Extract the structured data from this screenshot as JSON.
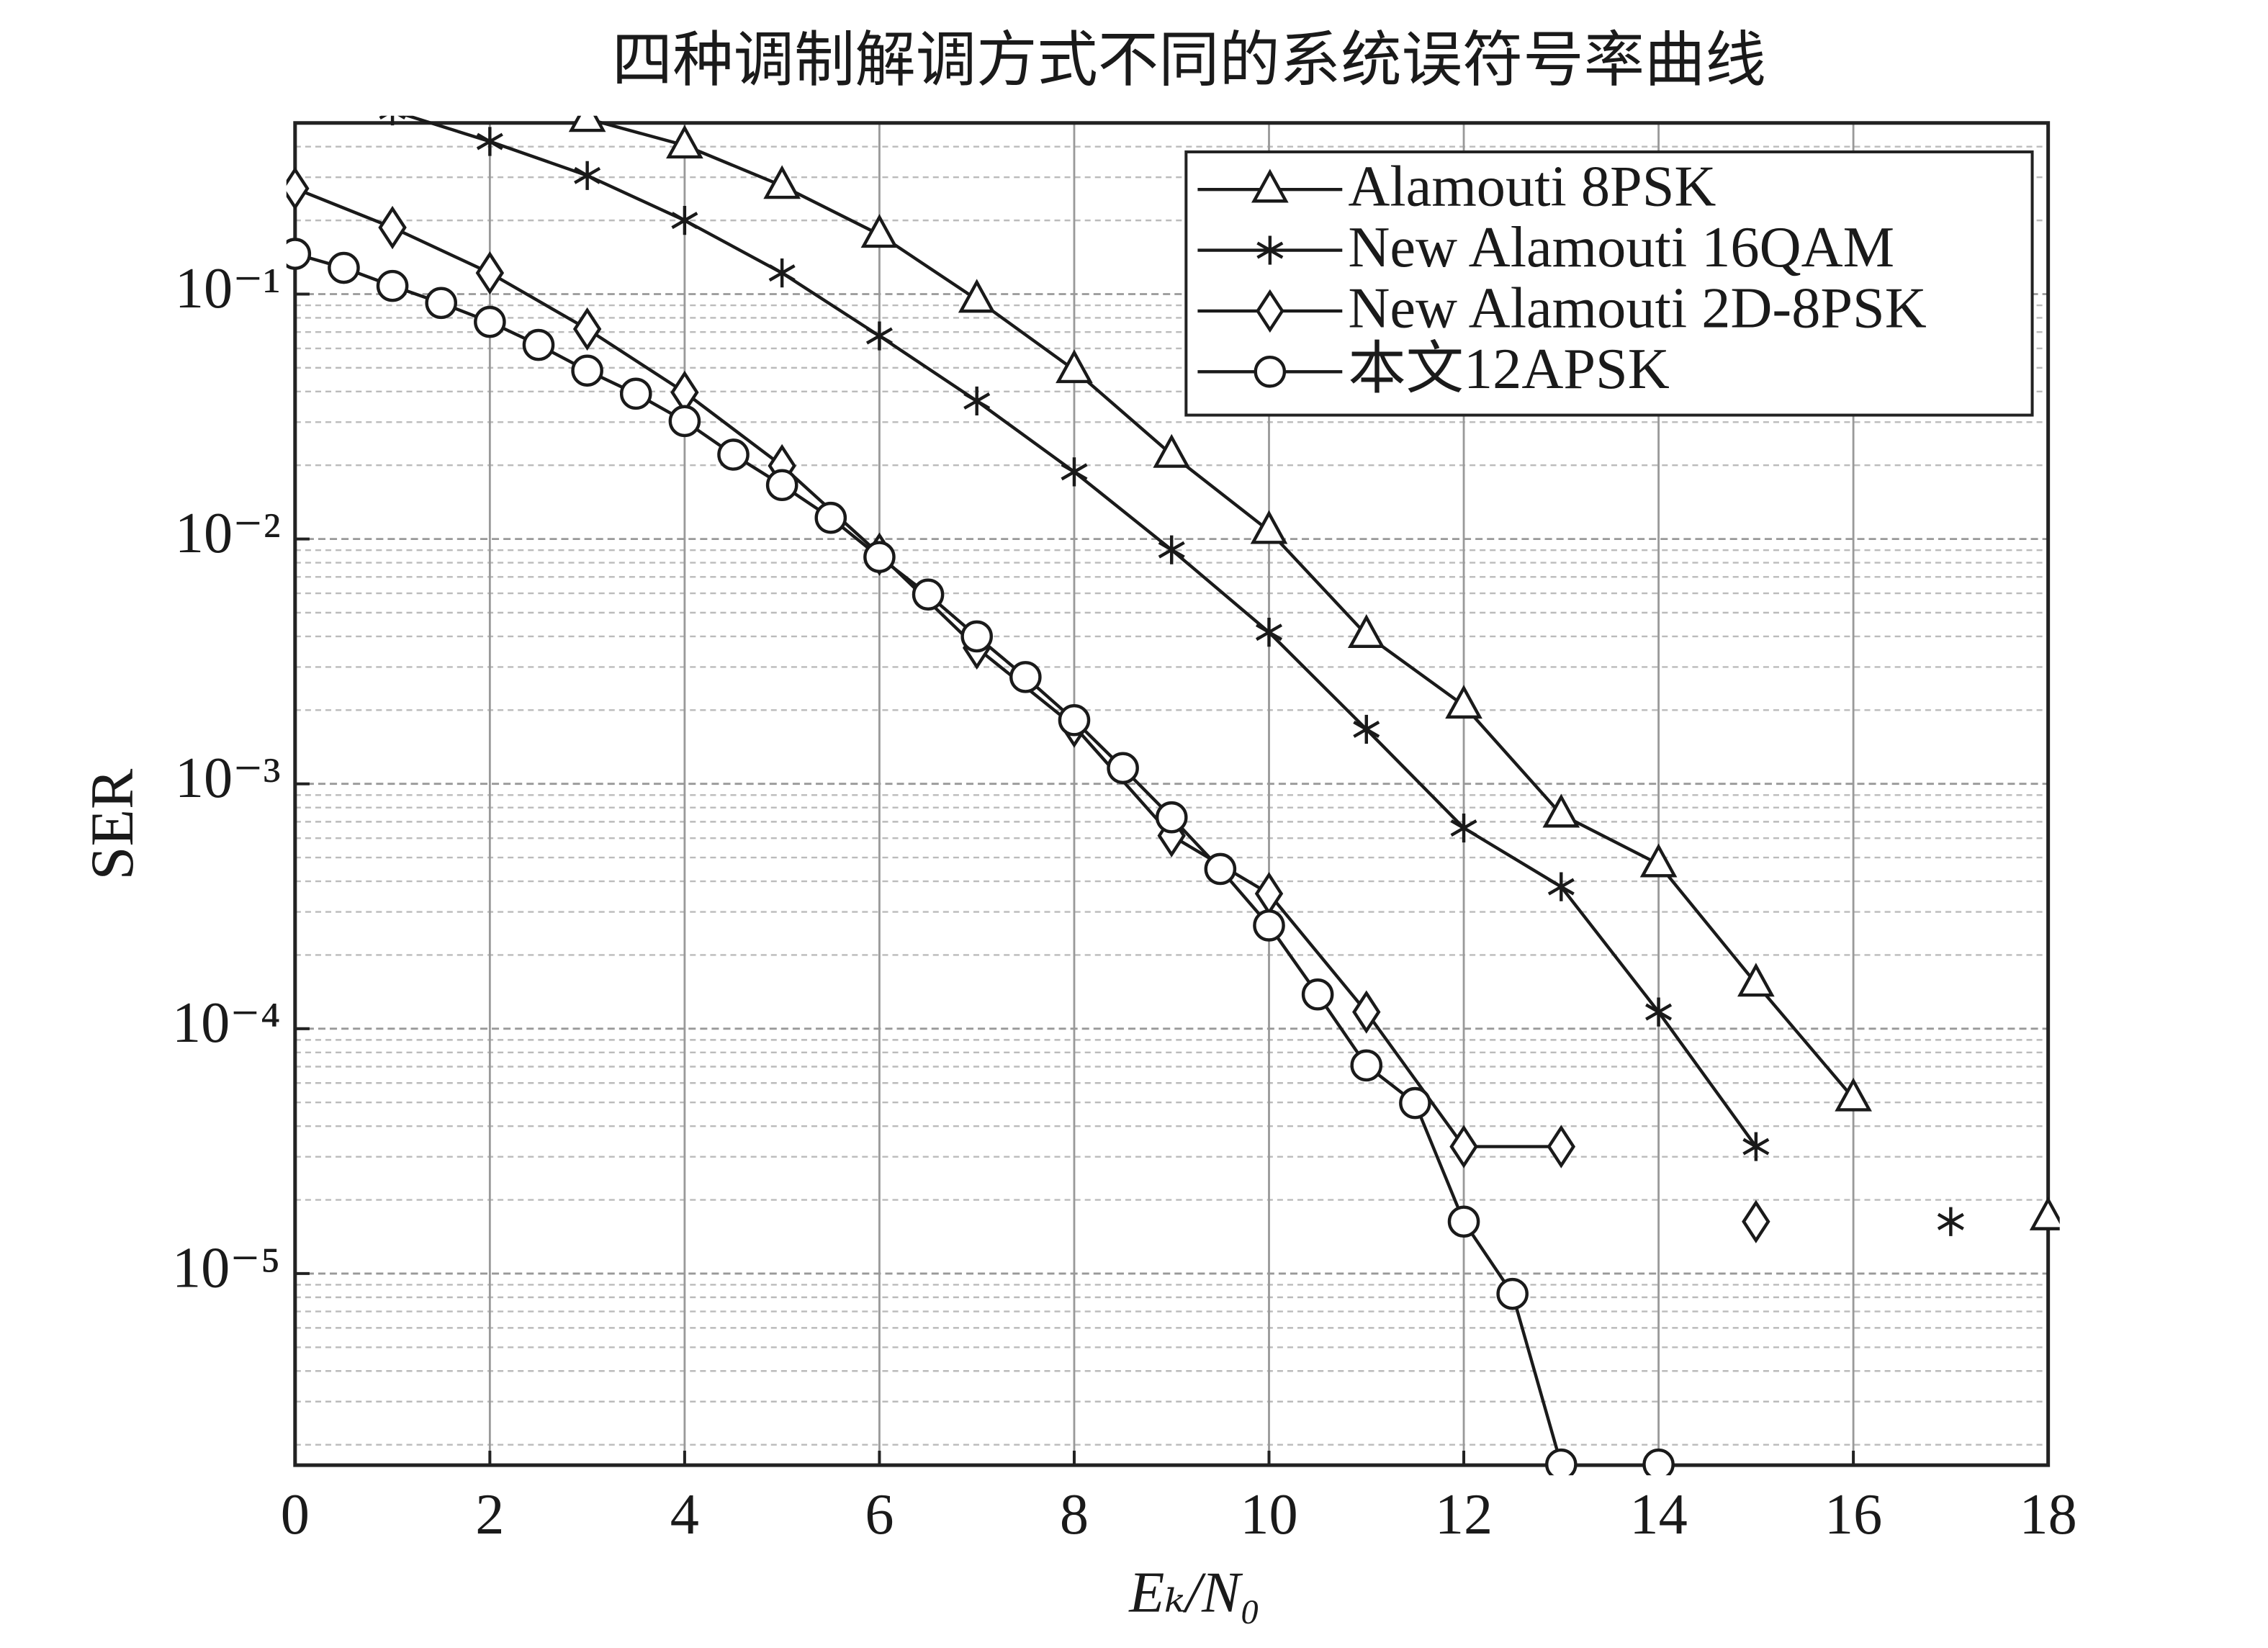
{
  "chart_data": {
    "type": "line",
    "title": "四种调制解调方式不同的系统误符号率曲线",
    "xlabel": "Eₖ/N₀",
    "ylabel": "SER",
    "xlim": [
      0,
      18
    ],
    "xticks": [
      0,
      2,
      4,
      6,
      8,
      10,
      12,
      14,
      16,
      18
    ],
    "ylim": [
      1.65e-06,
      0.5
    ],
    "yscale": "log",
    "yticks": [
      {
        "value": 1e-05,
        "label": "10⁻⁵"
      },
      {
        "value": 0.0001,
        "label": "10⁻⁴"
      },
      {
        "value": 0.001,
        "label": "10⁻³"
      },
      {
        "value": 0.01,
        "label": "10⁻²"
      },
      {
        "value": 0.1,
        "label": "10⁻¹"
      }
    ],
    "grid": true,
    "legend": "upper right",
    "series": [
      {
        "name": "Alamouti 8PSK",
        "color": "#1a1a1a",
        "marker": "triangle",
        "x": [
          3,
          4,
          5,
          6,
          7,
          8,
          9,
          10,
          11,
          12,
          13,
          14,
          15,
          16,
          17,
          18
        ],
        "values": [
          0.52,
          0.405,
          0.277,
          0.175,
          0.095,
          0.049,
          0.0221,
          0.0108,
          0.00406,
          0.00209,
          0.00075,
          0.00047,
          0.000153,
          5.2e-05,
          null,
          1.7e-05
        ]
      },
      {
        "name": "New Alamouti 16QAM",
        "color": "#1a1a1a",
        "marker": "star",
        "x": [
          1,
          2,
          3,
          4,
          5,
          6,
          7,
          8,
          9,
          10,
          11,
          12,
          13,
          14,
          15,
          16,
          17
        ],
        "values": [
          0.56,
          0.42,
          0.305,
          0.2,
          0.122,
          0.0675,
          0.0366,
          0.0188,
          0.00903,
          0.00416,
          0.00167,
          0.00066,
          0.00038,
          0.000117,
          3.3e-05,
          null,
          1.63e-05
        ]
      },
      {
        "name": "New Alamouti 2D-8PSK",
        "color": "#1a1a1a",
        "marker": "diamond",
        "x": [
          0,
          1,
          2,
          3,
          4,
          5,
          6,
          7,
          8,
          9,
          10,
          11,
          12,
          13,
          14,
          15
        ],
        "values": [
          0.27,
          0.187,
          0.122,
          0.072,
          0.0397,
          0.0199,
          0.00867,
          0.00359,
          0.00172,
          0.000614,
          0.000356,
          0.000117,
          3.3e-05,
          3.3e-05,
          null,
          1.63e-05
        ]
      },
      {
        "name": "本文12APSK",
        "color": "#1a1a1a",
        "marker": "circle",
        "x": [
          0,
          0.5,
          1,
          1.5,
          2,
          2.5,
          3,
          3.5,
          4,
          4.5,
          5,
          5.5,
          6,
          6.5,
          7,
          7.5,
          8,
          8.5,
          9,
          9.5,
          10,
          10.5,
          11,
          11.5,
          12,
          12.5,
          13,
          13.5,
          14
        ],
        "values": [
          0.146,
          0.128,
          0.108,
          0.092,
          0.077,
          0.062,
          0.0487,
          0.0392,
          0.0303,
          0.0221,
          0.0166,
          0.0122,
          0.00844,
          0.00593,
          0.004,
          0.00273,
          0.00182,
          0.00116,
          0.00073,
          0.000449,
          0.000264,
          0.000138,
          7.08e-05,
          4.97e-05,
          1.63e-05,
          8.26e-06,
          1.66e-06,
          null,
          1.66e-06
        ]
      }
    ]
  }
}
